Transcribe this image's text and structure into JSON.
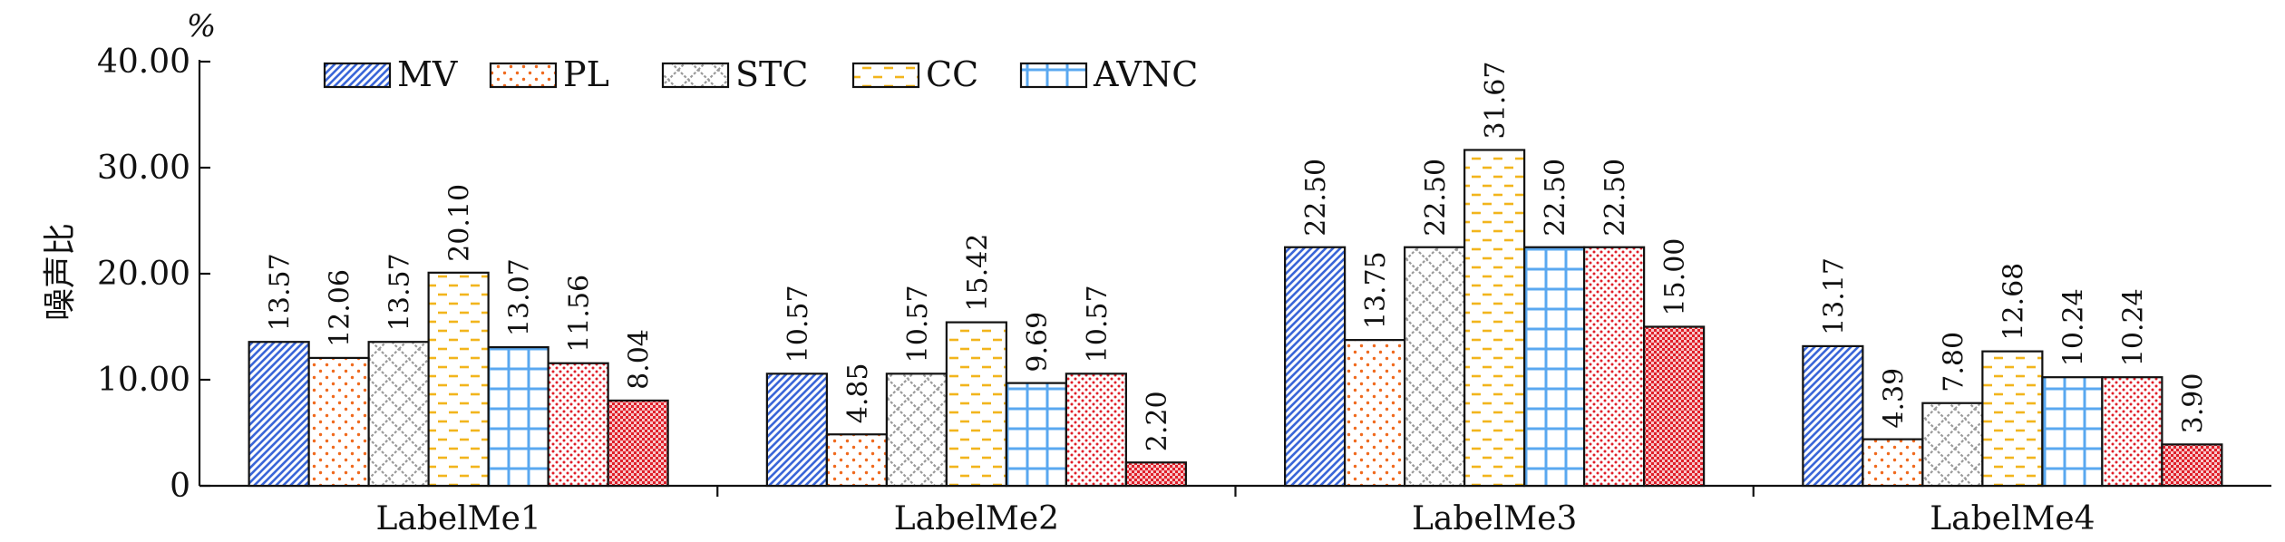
{
  "chart_data": {
    "type": "bar",
    "title": "",
    "xlabel": "",
    "ylabel": "噪声比",
    "unit": "%",
    "ylim": [
      0,
      40
    ],
    "yticks": [
      "0",
      "10.00",
      "20.00",
      "30.00",
      "40.00"
    ],
    "categories": [
      "LabelMe1",
      "LabelMe2",
      "LabelMe3",
      "LabelMe4"
    ],
    "legend_position": "top-left",
    "grid": false,
    "series": [
      {
        "name": "MV",
        "pattern": "diagonal",
        "color": "#3a66d8",
        "values": [
          13.57,
          10.57,
          22.5,
          13.17
        ],
        "labels": [
          "13.57",
          "10.57",
          "22.50",
          "13.17"
        ]
      },
      {
        "name": "PL",
        "pattern": "dots",
        "color": "#f06a1e",
        "values": [
          12.06,
          4.85,
          13.75,
          4.39
        ],
        "labels": [
          "12.06",
          "4.85",
          "13.75",
          "4.39"
        ]
      },
      {
        "name": "STC",
        "pattern": "zigzag",
        "color": "#9a9a9a",
        "values": [
          13.57,
          10.57,
          22.5,
          7.8
        ],
        "labels": [
          "13.57",
          "10.57",
          "22.50",
          "7.80"
        ]
      },
      {
        "name": "CC",
        "pattern": "dashes",
        "color": "#f2b51c",
        "values": [
          20.1,
          15.42,
          31.67,
          12.68
        ],
        "labels": [
          "20.10",
          "15.42",
          "31.67",
          "12.68"
        ]
      },
      {
        "name": "AVNC",
        "pattern": "grid",
        "color": "#5aa8f0",
        "values": [
          13.07,
          9.69,
          22.5,
          10.24
        ],
        "labels": [
          "13.07",
          "9.69",
          "22.50",
          "10.24"
        ]
      },
      {
        "name": "",
        "pattern": "dense-dots",
        "color": "#e0202a",
        "values": [
          11.56,
          10.57,
          22.5,
          10.24
        ],
        "labels": [
          "11.56",
          "10.57",
          "22.50",
          "10.24"
        ]
      },
      {
        "name": "",
        "pattern": "fine-check",
        "color": "#e0202a",
        "values": [
          8.04,
          2.2,
          15.0,
          3.9
        ],
        "labels": [
          "8.04",
          "2.20",
          "15.00",
          "3.90"
        ]
      }
    ]
  }
}
